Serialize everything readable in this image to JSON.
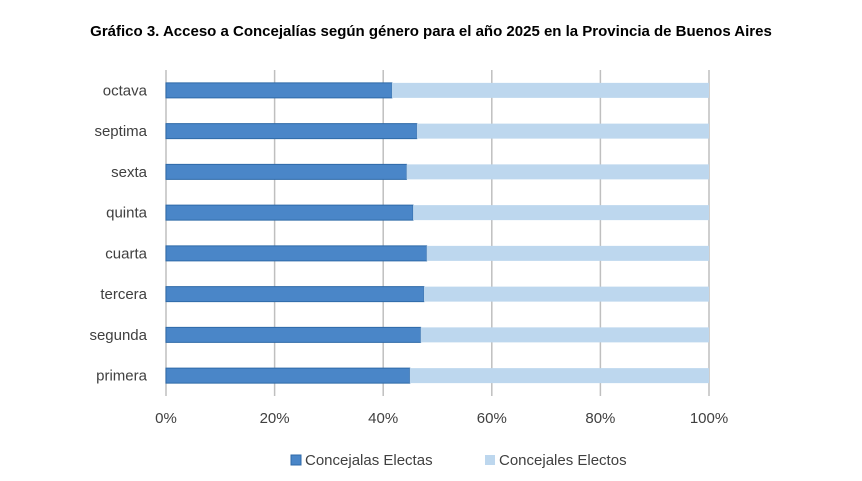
{
  "chart_data": {
    "type": "bar",
    "orientation": "horizontal",
    "stacked": "percent",
    "title": "Gráfico 3. Acceso a Concejalías según género para el año 2025 en la Provincia de Buenos Aires",
    "categories": [
      "primera",
      "segunda",
      "tercera",
      "cuarta",
      "quinta",
      "sexta",
      "septima",
      "octava"
    ],
    "series": [
      {
        "name": "Concejalas Electas",
        "color": "#4a86c8",
        "values": [
          44.9,
          46.9,
          47.5,
          48.0,
          45.5,
          44.3,
          46.2,
          41.6
        ]
      },
      {
        "name": "Concejales Electos",
        "color": "#bdd7ee",
        "values": [
          55.1,
          53.1,
          52.5,
          52.0,
          54.5,
          55.7,
          53.8,
          58.4
        ]
      }
    ],
    "xticks": [
      "0%",
      "20%",
      "40%",
      "60%",
      "80%",
      "100%"
    ],
    "xlim": [
      0,
      100
    ],
    "grid": true,
    "legend": "bottom"
  }
}
